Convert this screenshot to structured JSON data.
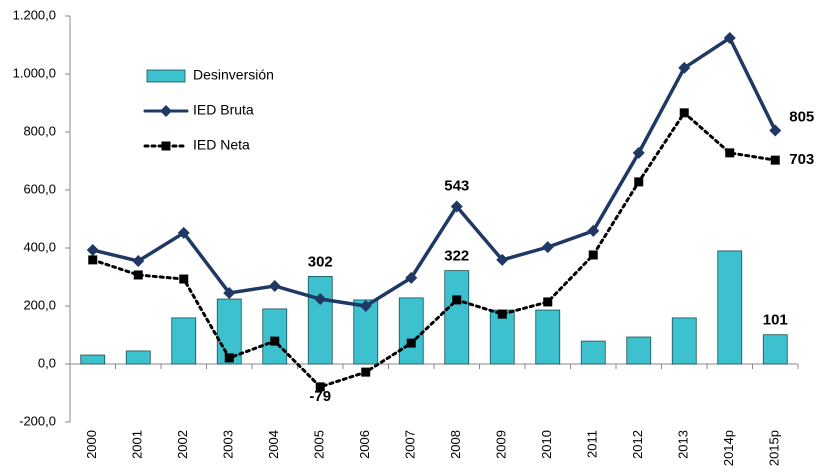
{
  "chart_data": {
    "type": "bar-line",
    "categories": [
      "2000",
      "2001",
      "2002",
      "2003",
      "2004",
      "2005",
      "2006",
      "2007",
      "2008",
      "2009",
      "2010",
      "2011",
      "2012",
      "2013",
      "2014p",
      "2015p"
    ],
    "series": [
      {
        "name": "Desinversión",
        "kind": "bar",
        "color": "#3ec1cf",
        "values": [
          31,
          45,
          159,
          224,
          190,
          302,
          221,
          228,
          322,
          186,
          186,
          79,
          93,
          159,
          390,
          101
        ],
        "value_labels": [
          null,
          null,
          null,
          null,
          null,
          "302",
          null,
          null,
          "322",
          null,
          null,
          null,
          null,
          null,
          null,
          "101"
        ]
      },
      {
        "name": "IED Bruta",
        "kind": "line",
        "color": "#1f3864",
        "values": [
          393,
          355,
          452,
          245,
          269,
          224,
          200,
          297,
          543,
          359,
          403,
          459,
          728,
          1021,
          1124,
          805
        ],
        "value_labels": [
          null,
          null,
          null,
          null,
          null,
          null,
          null,
          null,
          "543",
          null,
          null,
          null,
          null,
          null,
          null,
          "805"
        ]
      },
      {
        "name": "IED Neta",
        "kind": "dotted-line",
        "color": "#000000",
        "values": [
          359,
          307,
          293,
          21,
          79,
          -79,
          -28,
          72,
          221,
          172,
          214,
          376,
          628,
          866,
          728,
          703
        ],
        "value_labels": [
          null,
          null,
          null,
          null,
          null,
          "-79",
          null,
          null,
          null,
          null,
          null,
          null,
          null,
          null,
          null,
          "703"
        ]
      }
    ],
    "ylim": [
      -200,
      1200
    ],
    "yticks": [
      {
        "value": -200,
        "label": "-200,0"
      },
      {
        "value": 0,
        "label": "0,0"
      },
      {
        "value": 200,
        "label": "200,0"
      },
      {
        "value": 400,
        "label": "400,0"
      },
      {
        "value": 600,
        "label": "600,0"
      },
      {
        "value": 800,
        "label": "800,0"
      },
      {
        "value": 1000,
        "label": "1.000,0"
      },
      {
        "value": 1200,
        "label": "1.200,0"
      }
    ],
    "legend": "upper-left"
  }
}
